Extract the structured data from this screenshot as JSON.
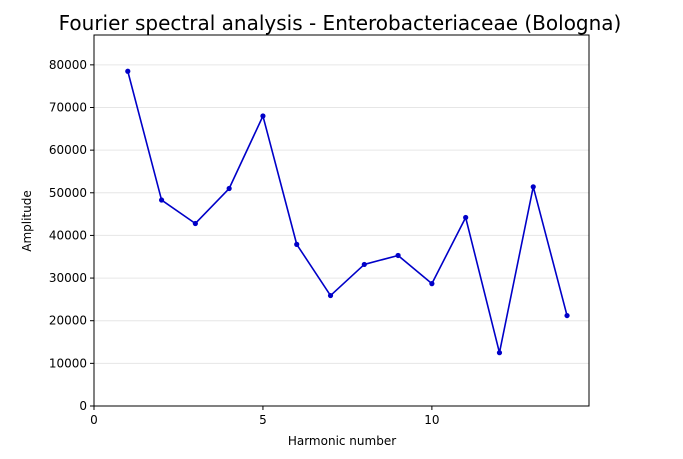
{
  "chart_data": {
    "type": "line",
    "title": "Fourier spectral analysis - Enterobacteriaceae (Bologna)",
    "xlabel": "Harmonic number",
    "ylabel": "Amplitude",
    "xlim": [
      0,
      14.65
    ],
    "ylim": [
      0,
      87000
    ],
    "xticks": [
      0,
      5,
      10
    ],
    "yticks": [
      0,
      10000,
      20000,
      30000,
      40000,
      50000,
      60000,
      70000,
      80000
    ],
    "grid": "y",
    "line_color": "#0000c8",
    "series": [
      {
        "x": [
          1,
          2,
          3,
          4,
          5,
          6,
          7,
          8,
          9,
          10,
          11,
          12,
          13,
          14
        ],
        "values": [
          78500,
          48300,
          42800,
          51000,
          68000,
          37900,
          25900,
          33200,
          35300,
          28700,
          44200,
          12500,
          51400,
          21200
        ]
      }
    ]
  }
}
